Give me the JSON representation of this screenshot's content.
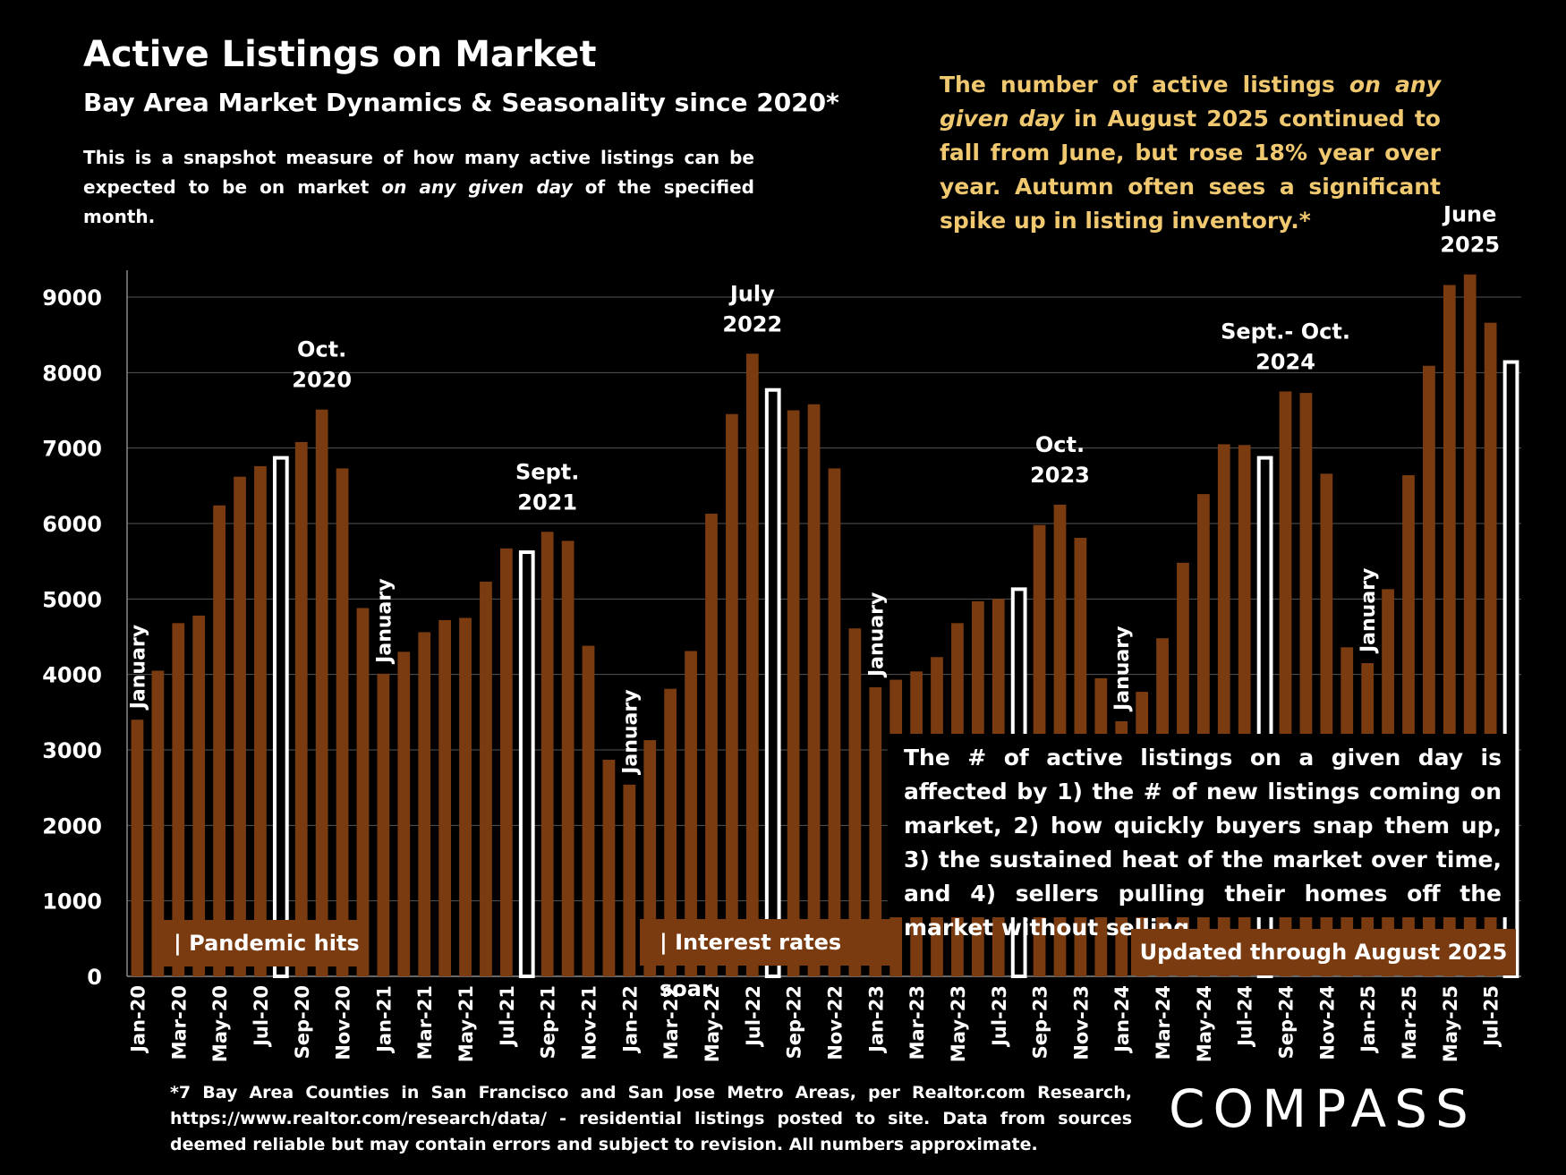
{
  "title": "Active Listings on Market",
  "subtitle": "Bay Area Market Dynamics & Seasonality since 2020*",
  "description_parts": [
    "This is a snapshot measure of how many active listings can be expected to be on market ",
    "on any given day",
    " of the specified month."
  ],
  "callout_parts": [
    "The number of active listings ",
    "on any given day",
    " in August 2025 continued to fall from June, but rose 18% year over year. Autumn often sees a significant spike up in listing inventory.*"
  ],
  "notes_text": "The # of active listings on a given day is affected by 1) the # of new listings coming on market, 2) how quickly buyers snap them up, 3) the sustained heat of the market over time, and 4) sellers pulling their homes off the market without selling.",
  "tags": {
    "pandemic": "| Pandemic hits",
    "rates": "| Interest rates soar",
    "updated": "Updated through August 2025"
  },
  "footnote": "*7 Bay Area Counties in San Francisco and San Jose Metro Areas, per Realtor.com Research, https://www.realtor.com/research/data/ - residential listings posted to site.  Data from sources deemed reliable but may contain errors and subject to revision. All numbers approximate.",
  "logo": "COMPASS",
  "colors": {
    "bar": "#7a3b10",
    "highlight_fill": "#000000",
    "highlight_stroke": "#ffffff",
    "callout": "#f0c870",
    "background": "#000000"
  },
  "chart_data": {
    "type": "bar",
    "title": "Active Listings on Market",
    "ylim": [
      0,
      9000
    ],
    "yticks": [
      0,
      1000,
      2000,
      3000,
      4000,
      5000,
      6000,
      7000,
      8000,
      9000
    ],
    "grid": true,
    "categories": [
      "Jan-20",
      "Feb-20",
      "Mar-20",
      "Apr-20",
      "May-20",
      "Jun-20",
      "Jul-20",
      "Aug-20",
      "Sep-20",
      "Oct-20",
      "Nov-20",
      "Dec-20",
      "Jan-21",
      "Feb-21",
      "Mar-21",
      "Apr-21",
      "May-21",
      "Jun-21",
      "Jul-21",
      "Aug-21",
      "Sep-21",
      "Oct-21",
      "Nov-21",
      "Dec-21",
      "Jan-22",
      "Feb-22",
      "Mar-22",
      "Apr-22",
      "May-22",
      "Jun-22",
      "Jul-22",
      "Aug-22",
      "Sep-22",
      "Oct-22",
      "Nov-22",
      "Dec-22",
      "Jan-23",
      "Feb-23",
      "Mar-23",
      "Apr-23",
      "May-23",
      "Jun-23",
      "Jul-23",
      "Aug-23",
      "Sep-23",
      "Oct-23",
      "Nov-23",
      "Dec-23",
      "Jan-24",
      "Feb-24",
      "Mar-24",
      "Apr-24",
      "May-24",
      "Jun-24",
      "Jul-24",
      "Aug-24",
      "Sep-24",
      "Oct-24",
      "Nov-24",
      "Dec-24",
      "Jan-25",
      "Feb-25",
      "Mar-25",
      "Apr-25",
      "May-25",
      "Jun-25",
      "Jul-25",
      "Aug-25"
    ],
    "tick_labels": [
      "Jan-20",
      "Mar-20",
      "May-20",
      "Jul-20",
      "Sep-20",
      "Nov-20",
      "Jan-21",
      "Mar-21",
      "May-21",
      "Jul-21",
      "Sep-21",
      "Nov-21",
      "Jan-22",
      "Mar-22",
      "May-22",
      "Jul-22",
      "Sep-22",
      "Nov-22",
      "Jan-23",
      "Mar-23",
      "May-23",
      "Jul-23",
      "Sep-23",
      "Nov-23",
      "Jan-24",
      "Mar-24",
      "May-24",
      "Jul-24",
      "Sep-24",
      "Nov-24",
      "Jan-25",
      "Mar-25",
      "May-25",
      "Jul-25"
    ],
    "values": [
      3400,
      4050,
      4680,
      4780,
      6240,
      6620,
      6760,
      6870,
      7080,
      7510,
      6730,
      4880,
      4010,
      4300,
      4560,
      4720,
      4750,
      5230,
      5670,
      5620,
      5890,
      5770,
      4380,
      2870,
      2540,
      3130,
      3810,
      4310,
      6130,
      7450,
      8250,
      7770,
      7500,
      7580,
      6730,
      4610,
      3830,
      3930,
      4040,
      4230,
      4680,
      4970,
      5000,
      5130,
      5980,
      6250,
      5810,
      3950,
      3380,
      3770,
      4480,
      5480,
      6390,
      7050,
      7040,
      6870,
      7750,
      7730,
      6660,
      4360,
      4150,
      5130,
      6640,
      8090,
      9160,
      9300,
      8660,
      8140
    ],
    "highlighted": [
      "Aug-20",
      "Aug-21",
      "Aug-22",
      "Aug-23",
      "Aug-24",
      "Aug-25"
    ],
    "annotations": [
      {
        "text": "Oct.\n2020",
        "category": "Oct-20"
      },
      {
        "text": "Sept.\n2021",
        "category": "Sep-21"
      },
      {
        "text": "July\n2022",
        "category": "Jul-22"
      },
      {
        "text": "Oct.\n2023",
        "category": "Oct-23"
      },
      {
        "text": "Sept.- Oct.\n2024",
        "category": "Sep-24"
      },
      {
        "text": "June\n2025",
        "category": "Jun-25"
      }
    ],
    "vertical_labels": [
      {
        "text": "January",
        "category": "Jan-20"
      },
      {
        "text": "January",
        "category": "Jan-21"
      },
      {
        "text": "January",
        "category": "Jan-22"
      },
      {
        "text": "January",
        "category": "Jan-23"
      },
      {
        "text": "January",
        "category": "Jan-24"
      },
      {
        "text": "January",
        "category": "Jan-25"
      }
    ]
  }
}
